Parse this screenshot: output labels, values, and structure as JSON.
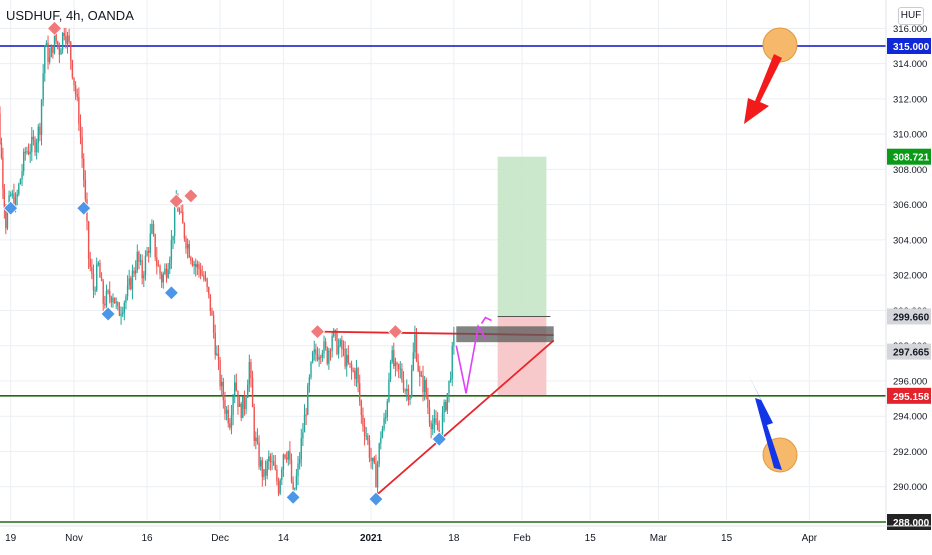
{
  "header": {
    "title": "USDHUF, 4h, OANDA",
    "currency": "HUF"
  },
  "colors": {
    "up": "#26a69a",
    "down": "#ef5350",
    "blue_line": "#0d10c9",
    "green_line": "#1e6b12",
    "red_line": "#e8262c",
    "magenta": "#e040fb",
    "target_zone": "#c8e6c9",
    "stop_zone": "#f8c6c8",
    "tag_blue": "#1028d6",
    "tag_green": "#0a9a18",
    "tag_red": "#e3232b",
    "tag_gray": "#d4d6da",
    "arrow_red": "#f21a1a",
    "arrow_blue": "#1235e8",
    "circle": "#f6b86a",
    "high_marker": "#f07a7a",
    "low_marker": "#4c96e8",
    "tag_dark": "#232323",
    "grid": "#eceff3"
  },
  "chart_data": {
    "type": "candlestick",
    "title": "USDHUF, 4h, OANDA",
    "ylim": [
      287.5,
      317.0
    ],
    "y_ticks": [
      "316.000",
      "314.000",
      "312.000",
      "310.000",
      "308.000",
      "306.000",
      "304.000",
      "302.000",
      "300.000",
      "298.000",
      "296.000",
      "294.000",
      "292.000",
      "290.000",
      "288.000"
    ],
    "x_ticks": [
      "19",
      "Nov",
      "16",
      "Dec",
      "14",
      "2021",
      "18",
      "Feb",
      "15",
      "Mar",
      "15",
      "Apr"
    ],
    "x_tick_days": [
      -13,
      0,
      15,
      30,
      43,
      61,
      78,
      92,
      106,
      120,
      134,
      151
    ],
    "price_path": [
      [
        -17,
        310
      ],
      [
        -15.5,
        311
      ],
      [
        -14,
        305
      ],
      [
        -13,
        306.5
      ],
      [
        -12,
        306
      ],
      [
        -10,
        309
      ],
      [
        -8,
        309.5
      ],
      [
        -7,
        310.5
      ],
      [
        -6,
        315
      ],
      [
        -5,
        314.2
      ],
      [
        -4,
        315.5
      ],
      [
        -3,
        314.8
      ],
      [
        -2,
        316
      ],
      [
        -1,
        315
      ],
      [
        1,
        311
      ],
      [
        2,
        307.5
      ],
      [
        3,
        303
      ],
      [
        4,
        301.2
      ],
      [
        5,
        302.5
      ],
      [
        6,
        300.5
      ],
      [
        8,
        301
      ],
      [
        9,
        299.8
      ],
      [
        11,
        301
      ],
      [
        12,
        302
      ],
      [
        13,
        303
      ],
      [
        14,
        302
      ],
      [
        16,
        304.5
      ],
      [
        17,
        302.7
      ],
      [
        18,
        301.8
      ],
      [
        19,
        302.4
      ],
      [
        20,
        303.8
      ],
      [
        21,
        306.2
      ],
      [
        23,
        304
      ],
      [
        24,
        303.2
      ],
      [
        25,
        302.5
      ],
      [
        26,
        302.3
      ],
      [
        27,
        301.5
      ],
      [
        28,
        300.2
      ],
      [
        29,
        298
      ],
      [
        30,
        296
      ],
      [
        31,
        294.5
      ],
      [
        32,
        293.8
      ],
      [
        33,
        296.2
      ],
      [
        34,
        294.3
      ],
      [
        35,
        294.7
      ],
      [
        36,
        297
      ],
      [
        37,
        293
      ],
      [
        38,
        291.5
      ],
      [
        39,
        290.5
      ],
      [
        40,
        291.5
      ],
      [
        41,
        291
      ],
      [
        42,
        290
      ],
      [
        43,
        292
      ],
      [
        44,
        292
      ],
      [
        45,
        289.4
      ],
      [
        46,
        291
      ],
      [
        47,
        293.2
      ],
      [
        48,
        295.2
      ],
      [
        49,
        297.3
      ],
      [
        51,
        298
      ],
      [
        52,
        297.4
      ],
      [
        53,
        298.7
      ],
      [
        54,
        298
      ],
      [
        55,
        297.8
      ],
      [
        56,
        297
      ],
      [
        57,
        296.5
      ],
      [
        58,
        296.5
      ],
      [
        59,
        294
      ],
      [
        60,
        293
      ],
      [
        61,
        291.5
      ],
      [
        62,
        290.5
      ],
      [
        63,
        293
      ],
      [
        64,
        293.9
      ],
      [
        65,
        297.6
      ],
      [
        66,
        296.5
      ],
      [
        67,
        296.5
      ],
      [
        68,
        295.6
      ],
      [
        69,
        295.4
      ],
      [
        70,
        298.5
      ],
      [
        71,
        296
      ],
      [
        72,
        295.7
      ],
      [
        73,
        294
      ],
      [
        74,
        293.4
      ],
      [
        75,
        293.1
      ],
      [
        76,
        294.3
      ],
      [
        77,
        295.8
      ],
      [
        78,
        298.3
      ]
    ],
    "levels": [
      {
        "name": "resistance",
        "value": 315.0,
        "label": "315.000"
      },
      {
        "name": "support",
        "value": 295.158,
        "label": "295.158"
      },
      {
        "name": "bottom",
        "value": 288.0,
        "label": "288.000"
      }
    ],
    "price_tags": [
      {
        "value": 308.721,
        "label": "308.721",
        "color": "#0a9a18"
      },
      {
        "value": 299.66,
        "label": "299.660",
        "color": "#d4d6da"
      },
      {
        "value": 297.665,
        "label": "297.665",
        "color": "#d4d6da"
      }
    ],
    "swing_highs": [
      [
        -4,
        316.0
      ],
      [
        21,
        306.2
      ],
      [
        24,
        306.5
      ],
      [
        50,
        298.8
      ],
      [
        66,
        298.8
      ]
    ],
    "swing_lows": [
      [
        -13,
        305.8
      ],
      [
        2,
        305.8
      ],
      [
        20,
        301.0
      ],
      [
        7,
        299.8
      ],
      [
        45,
        289.4
      ],
      [
        62,
        289.3
      ],
      [
        75,
        292.7
      ]
    ],
    "trendline_top": [
      [
        50,
        298.8
      ],
      [
        98.5,
        298.6
      ]
    ],
    "trendline_rising": [
      [
        62,
        289.5
      ],
      [
        98.5,
        298.3
      ]
    ],
    "target_zone": {
      "x": [
        87,
        97
      ],
      "y": [
        299.66,
        308.721
      ]
    },
    "stop_zone": {
      "x": [
        87,
        97
      ],
      "y": [
        295.158,
        299.66
      ]
    },
    "entry_box": {
      "x": [
        78.5,
        98.5
      ],
      "y": [
        298.2,
        299.1
      ]
    },
    "projection": [
      [
        78.5,
        298
      ],
      [
        80.5,
        295.3
      ],
      [
        83,
        299.1
      ],
      [
        84.5,
        298.4
      ],
      [
        84.5,
        299.6
      ]
    ]
  }
}
